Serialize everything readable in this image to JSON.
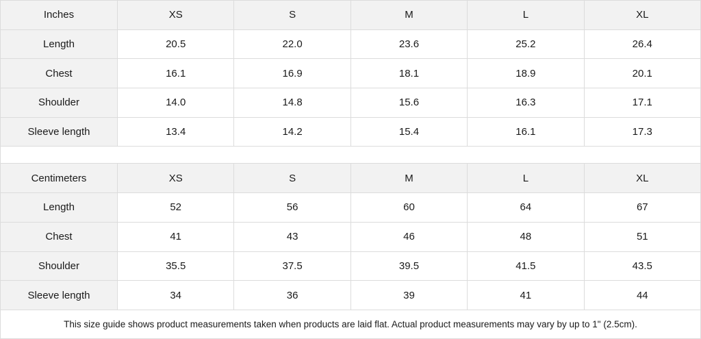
{
  "sizes": [
    "XS",
    "S",
    "M",
    "L",
    "XL"
  ],
  "tables": [
    {
      "unit": "Inches",
      "rows": [
        {
          "label": "Length",
          "values": [
            "20.5",
            "22.0",
            "23.6",
            "25.2",
            "26.4"
          ]
        },
        {
          "label": "Chest",
          "values": [
            "16.1",
            "16.9",
            "18.1",
            "18.9",
            "20.1"
          ]
        },
        {
          "label": "Shoulder",
          "values": [
            "14.0",
            "14.8",
            "15.6",
            "16.3",
            "17.1"
          ]
        },
        {
          "label": "Sleeve length",
          "values": [
            "13.4",
            "14.2",
            "15.4",
            "16.1",
            "17.3"
          ]
        }
      ]
    },
    {
      "unit": "Centimeters",
      "rows": [
        {
          "label": "Length",
          "values": [
            "52",
            "56",
            "60",
            "64",
            "67"
          ]
        },
        {
          "label": "Chest",
          "values": [
            "41",
            "43",
            "46",
            "48",
            "51"
          ]
        },
        {
          "label": "Shoulder",
          "values": [
            "35.5",
            "37.5",
            "39.5",
            "41.5",
            "43.5"
          ]
        },
        {
          "label": "Sleeve length",
          "values": [
            "34",
            "36",
            "39",
            "41",
            "44"
          ]
        }
      ]
    }
  ],
  "note": "This size guide shows product measurements taken when products are laid flat.  Actual product measurements may vary by up to 1\" (2.5cm).",
  "colors": {
    "header_bg": "#f2f2f2",
    "border": "#dcdcdc"
  }
}
